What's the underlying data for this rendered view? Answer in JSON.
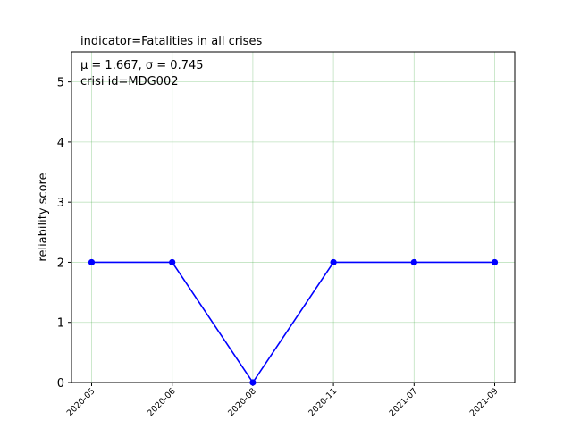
{
  "chart_data": {
    "type": "line",
    "title": "indicator=Fatalities in all crises",
    "xlabel": "",
    "ylabel": "reliability score",
    "categories": [
      "2020-05",
      "2020-06",
      "2020-08",
      "2020-11",
      "2021-07",
      "2021-09"
    ],
    "series": [
      {
        "values": [
          2,
          2,
          0,
          2,
          2,
          2
        ],
        "color": "#0000ff",
        "marker": "circle"
      }
    ],
    "ylim": [
      0,
      5.5
    ],
    "yticks": [
      0,
      1,
      2,
      3,
      4,
      5
    ],
    "grid": true,
    "grid_color": "#2ca02c",
    "annotations": [
      "μ = 1.667,  σ = 0.745",
      "crisi id=MDG002"
    ]
  }
}
